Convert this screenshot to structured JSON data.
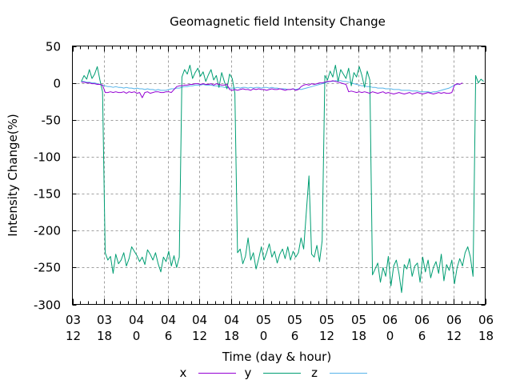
{
  "chart_data": {
    "type": "line",
    "title": "Geomagnetic field Intensity Change",
    "xlabel": "Time (day & hour)",
    "ylabel": "Intensity Change(%)",
    "xlim_hours": [
      0,
      78
    ],
    "ylim": [
      -300,
      50
    ],
    "grid": true,
    "legend_position": "bottom-center",
    "x_ticks": [
      {
        "hours": 0,
        "day": "03",
        "hour": "12"
      },
      {
        "hours": 6,
        "day": "03",
        "hour": "18"
      },
      {
        "hours": 12,
        "day": "04",
        "hour": "0"
      },
      {
        "hours": 18,
        "day": "04",
        "hour": "6"
      },
      {
        "hours": 24,
        "day": "04",
        "hour": "12"
      },
      {
        "hours": 30,
        "day": "04",
        "hour": "18"
      },
      {
        "hours": 36,
        "day": "05",
        "hour": "0"
      },
      {
        "hours": 42,
        "day": "05",
        "hour": "6"
      },
      {
        "hours": 48,
        "day": "05",
        "hour": "12"
      },
      {
        "hours": 54,
        "day": "05",
        "hour": "18"
      },
      {
        "hours": 60,
        "day": "06",
        "hour": "0"
      },
      {
        "hours": 66,
        "day": "06",
        "hour": "6"
      },
      {
        "hours": 72,
        "day": "06",
        "hour": "12"
      },
      {
        "hours": 78,
        "day": "06",
        "hour": "18"
      }
    ],
    "y_ticks": [
      50,
      0,
      -50,
      -100,
      -150,
      -200,
      -250,
      -300
    ],
    "x_step_hours": 0.5,
    "x_start_hours": 1.7,
    "series": [
      {
        "name": "x",
        "color": "#9400d3",
        "values": [
          1,
          1,
          0,
          0,
          -1,
          -1,
          -2,
          -2,
          -3,
          -13,
          -13,
          -12,
          -13,
          -12,
          -13,
          -13,
          -12,
          -14,
          -12,
          -13,
          -12,
          -14,
          -13,
          -20,
          -13,
          -12,
          -14,
          -13,
          -12,
          -12,
          -13,
          -13,
          -12,
          -12,
          -13,
          -9,
          -5,
          -4,
          -4,
          -3,
          -3,
          -2,
          -2,
          -1,
          -1,
          -2,
          -1,
          -2,
          -2,
          -1,
          -3,
          -1,
          -2,
          -3,
          -3,
          -2,
          -9,
          -10,
          -9,
          -10,
          -9,
          -8,
          -9,
          -9,
          -10,
          -8,
          -9,
          -8,
          -9,
          -9,
          -10,
          -9,
          -8,
          -9,
          -9,
          -8,
          -9,
          -10,
          -9,
          -9,
          -8,
          -10,
          -9,
          -5,
          -3,
          -2,
          -3,
          -1,
          -2,
          -1,
          0,
          0,
          1,
          2,
          2,
          3,
          2,
          1,
          0,
          -1,
          -2,
          -12,
          -11,
          -12,
          -13,
          -12,
          -13,
          -12,
          -13,
          -14,
          -12,
          -13,
          -14,
          -13,
          -12,
          -14,
          -13,
          -14,
          -15,
          -14,
          -13,
          -14,
          -15,
          -14,
          -13,
          -15,
          -14,
          -13,
          -14,
          -15,
          -14,
          -13,
          -14,
          -15,
          -14,
          -13,
          -14,
          -13,
          -14,
          -14,
          -13,
          -3,
          -1,
          -2,
          0
        ]
      },
      {
        "name": "y",
        "color": "#009e73",
        "values": [
          2,
          10,
          5,
          18,
          6,
          12,
          22,
          4,
          -12,
          -230,
          -240,
          -235,
          -258,
          -232,
          -245,
          -240,
          -230,
          -248,
          -238,
          -222,
          -228,
          -234,
          -242,
          -236,
          -246,
          -226,
          -232,
          -240,
          -230,
          -245,
          -256,
          -236,
          -242,
          -228,
          -248,
          -234,
          -250,
          -236,
          8,
          18,
          12,
          24,
          6,
          14,
          20,
          9,
          15,
          2,
          11,
          18,
          4,
          10,
          -6,
          14,
          2,
          -8,
          12,
          6,
          -14,
          -230,
          -225,
          -245,
          -235,
          -210,
          -240,
          -230,
          -252,
          -238,
          -222,
          -240,
          -230,
          -218,
          -236,
          -228,
          -244,
          -232,
          -225,
          -238,
          -222,
          -240,
          -228,
          -236,
          -230,
          -210,
          -225,
          -175,
          -126,
          -232,
          -236,
          -220,
          -242,
          -214,
          10,
          4,
          16,
          8,
          24,
          2,
          18,
          12,
          6,
          20,
          -4,
          14,
          8,
          22,
          10,
          -6,
          16,
          4,
          -260,
          -252,
          -244,
          -270,
          -250,
          -262,
          -235,
          -275,
          -248,
          -240,
          -258,
          -284,
          -246,
          -252,
          -238,
          -262,
          -248,
          -244,
          -270,
          -236,
          -256,
          -240,
          -264,
          -250,
          -242,
          -258,
          -232,
          -268,
          -246,
          -254,
          -240,
          -272,
          -250,
          -238,
          -248,
          -230,
          -222,
          -236,
          -262,
          10,
          0,
          5,
          2
        ]
      },
      {
        "name": "z",
        "color": "#56b4e9",
        "values": [
          2,
          2,
          1,
          1,
          0,
          0,
          -1,
          -2,
          -3,
          -4,
          -5,
          -5,
          -6,
          -5,
          -6,
          -6,
          -7,
          -6,
          -7,
          -7,
          -8,
          -7,
          -8,
          -8,
          -9,
          -8,
          -9,
          -9,
          -10,
          -9,
          -10,
          -10,
          -10,
          -9,
          -8,
          -8,
          -7,
          -7,
          -6,
          -5,
          -5,
          -4,
          -4,
          -3,
          -3,
          -3,
          -2,
          -3,
          -3,
          -3,
          -4,
          -4,
          -5,
          -5,
          -6,
          -6,
          -7,
          -7,
          -7,
          -6,
          -7,
          -6,
          -6,
          -7,
          -6,
          -7,
          -6,
          -6,
          -7,
          -6,
          -6,
          -7,
          -6,
          -7,
          -7,
          -8,
          -8,
          -8,
          -9,
          -9,
          -8,
          -9,
          -8,
          -9,
          -8,
          -7,
          -6,
          -5,
          -4,
          -3,
          -2,
          -1,
          0,
          1,
          2,
          2,
          3,
          3,
          3,
          2,
          2,
          1,
          0,
          -1,
          -2,
          -3,
          -4,
          -4,
          -5,
          -5,
          -6,
          -6,
          -7,
          -7,
          -7,
          -8,
          -8,
          -8,
          -9,
          -9,
          -9,
          -10,
          -10,
          -10,
          -10,
          -11,
          -11,
          -11,
          -12,
          -12,
          -12,
          -12,
          -13,
          -12,
          -12,
          -11,
          -10,
          -9,
          -8,
          -7,
          -5,
          -3,
          -2,
          -1
        ]
      }
    ]
  },
  "legend": {
    "items": [
      "x",
      "y",
      "z"
    ]
  }
}
